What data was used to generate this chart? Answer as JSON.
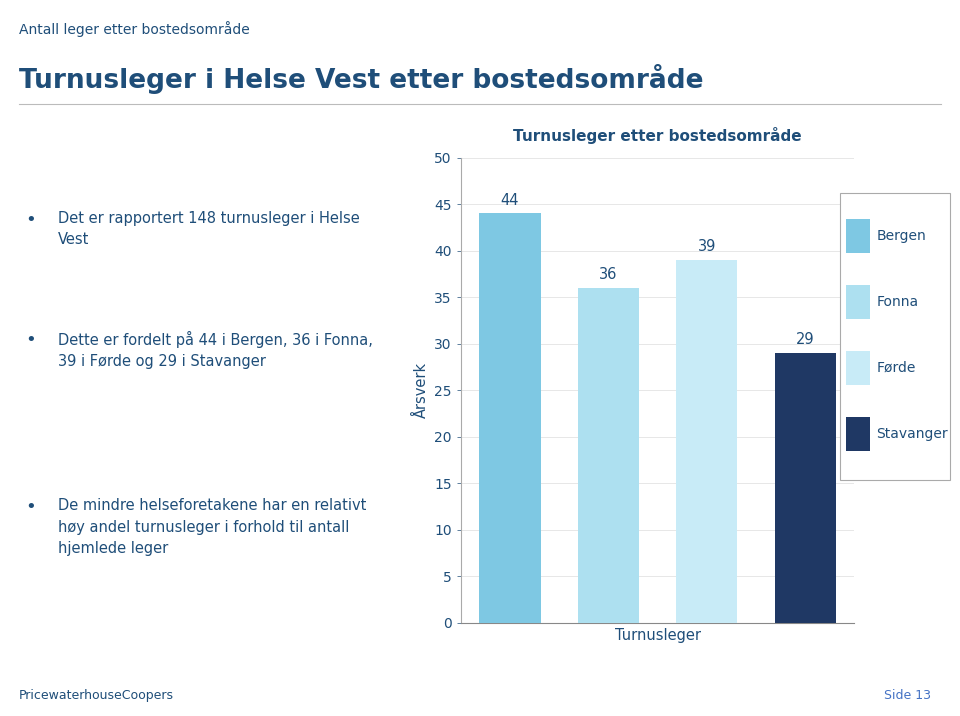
{
  "title_small": "Antall leger etter bostedsområde",
  "title_large": "Turnusleger i Helse Vest etter bostedsområde",
  "chart_title": "Turnusleger etter bostedsområde",
  "bullet_points": [
    "Det er rapportert 148 turnusleger i Helse\nVest",
    "Dette er fordelt på 44 i Bergen, 36 i Fonna,\n39 i Førde og 29 i Stavanger",
    "De mindre helseforetakene har en relativt\nhøy andel turnusleger i forhold til antall\nhjemlede leger"
  ],
  "categories": [
    "Bergen",
    "Fonna",
    "Førde",
    "Stavanger"
  ],
  "values": [
    44,
    36,
    39,
    29
  ],
  "bar_colors": [
    "#7EC8E3",
    "#ADE0F0",
    "#C8EBF7",
    "#1F3864"
  ],
  "xlabel": "Turnusleger",
  "ylabel": "Årsverk",
  "ylim": [
    0,
    50
  ],
  "yticks": [
    0,
    5,
    10,
    15,
    20,
    25,
    30,
    35,
    40,
    45,
    50
  ],
  "footer_left": "PricewaterhouseCoopers",
  "footer_right": "Side 13",
  "text_color": "#1F4E79",
  "background_color": "#FFFFFF",
  "legend_labels": [
    "Bergen",
    "Fonna",
    "Førde",
    "Stavanger"
  ]
}
